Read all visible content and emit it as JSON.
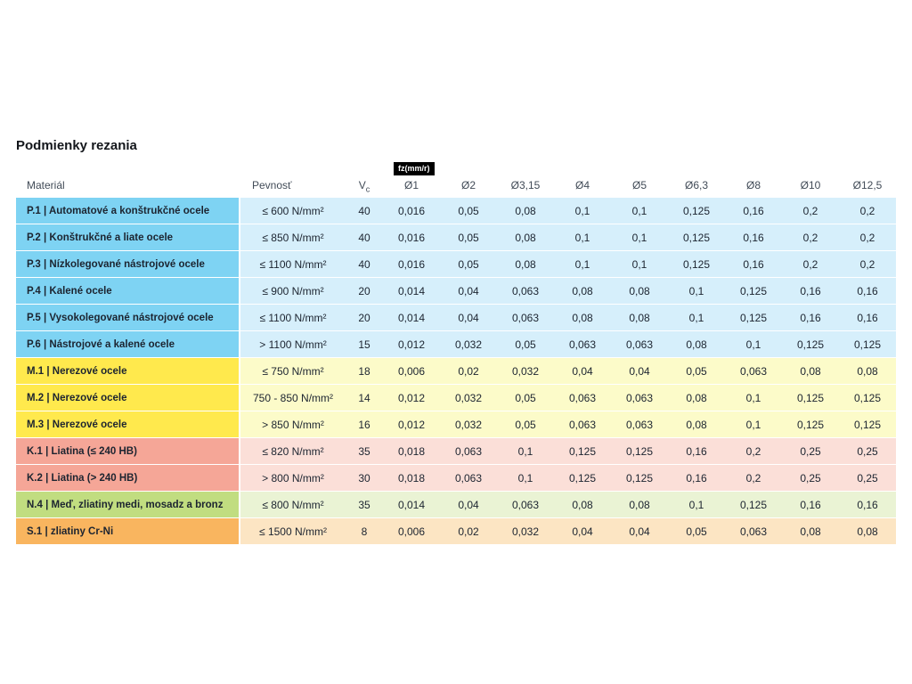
{
  "page": {
    "title": "Podmienky rezania"
  },
  "table": {
    "fz_badge": "fz(mm/r)",
    "columns": [
      {
        "key": "material",
        "label": "Materiál"
      },
      {
        "key": "pevnost",
        "label": "Pevnosť"
      },
      {
        "key": "vc",
        "label": "V",
        "sub": "c"
      },
      {
        "key": "d1",
        "label": "Ø1",
        "badge": "fz(mm/r)"
      },
      {
        "key": "d2",
        "label": "Ø2"
      },
      {
        "key": "d315",
        "label": "Ø3,15"
      },
      {
        "key": "d4",
        "label": "Ø4"
      },
      {
        "key": "d5",
        "label": "Ø5"
      },
      {
        "key": "d63",
        "label": "Ø6,3"
      },
      {
        "key": "d8",
        "label": "Ø8"
      },
      {
        "key": "d10",
        "label": "Ø10"
      },
      {
        "key": "d125",
        "label": "Ø12,5"
      }
    ],
    "palette": {
      "blue": {
        "label": "#7ed3f3",
        "body": "#d6effb"
      },
      "yellow": {
        "label": "#ffe94d",
        "body": "#fcfbc9"
      },
      "red": {
        "label": "#f5a697",
        "body": "#fbdfd8"
      },
      "green": {
        "label": "#c1dd80",
        "body": "#eaf3d4"
      },
      "orange": {
        "label": "#f9b55f",
        "body": "#fce5c3"
      }
    },
    "rows": [
      {
        "group": "blue",
        "material": "P.1 | Automatové a konštrukčné ocele",
        "pevnost": "≤ 600 N/mm²",
        "vc": "40",
        "values": [
          "0,016",
          "0,05",
          "0,08",
          "0,1",
          "0,1",
          "0,125",
          "0,16",
          "0,2",
          "0,2"
        ]
      },
      {
        "group": "blue",
        "material": "P.2 | Konštrukčné a liate ocele",
        "pevnost": "≤ 850 N/mm²",
        "vc": "40",
        "values": [
          "0,016",
          "0,05",
          "0,08",
          "0,1",
          "0,1",
          "0,125",
          "0,16",
          "0,2",
          "0,2"
        ]
      },
      {
        "group": "blue",
        "material": "P.3 | Nízkolegované nástrojové ocele",
        "pevnost": "≤ 1100 N/mm²",
        "vc": "40",
        "values": [
          "0,016",
          "0,05",
          "0,08",
          "0,1",
          "0,1",
          "0,125",
          "0,16",
          "0,2",
          "0,2"
        ]
      },
      {
        "group": "blue",
        "material": "P.4 | Kalené ocele",
        "pevnost": "≤ 900 N/mm²",
        "vc": "20",
        "values": [
          "0,014",
          "0,04",
          "0,063",
          "0,08",
          "0,08",
          "0,1",
          "0,125",
          "0,16",
          "0,16"
        ]
      },
      {
        "group": "blue",
        "material": "P.5 | Vysokolegované nástrojové ocele",
        "pevnost": "≤ 1100 N/mm²",
        "vc": "20",
        "values": [
          "0,014",
          "0,04",
          "0,063",
          "0,08",
          "0,08",
          "0,1",
          "0,125",
          "0,16",
          "0,16"
        ]
      },
      {
        "group": "blue",
        "material": "P.6 | Nástrojové a kalené ocele",
        "pevnost": "> 1100 N/mm²",
        "vc": "15",
        "values": [
          "0,012",
          "0,032",
          "0,05",
          "0,063",
          "0,063",
          "0,08",
          "0,1",
          "0,125",
          "0,125"
        ]
      },
      {
        "group": "yellow",
        "material": "M.1 | Nerezové ocele",
        "pevnost": "≤ 750 N/mm²",
        "vc": "18",
        "values": [
          "0,006",
          "0,02",
          "0,032",
          "0,04",
          "0,04",
          "0,05",
          "0,063",
          "0,08",
          "0,08"
        ]
      },
      {
        "group": "yellow",
        "material": "M.2 | Nerezové ocele",
        "pevnost": "750 - 850 N/mm²",
        "vc": "14",
        "values": [
          "0,012",
          "0,032",
          "0,05",
          "0,063",
          "0,063",
          "0,08",
          "0,1",
          "0,125",
          "0,125"
        ]
      },
      {
        "group": "yellow",
        "material": "M.3 | Nerezové ocele",
        "pevnost": "> 850 N/mm²",
        "vc": "16",
        "values": [
          "0,012",
          "0,032",
          "0,05",
          "0,063",
          "0,063",
          "0,08",
          "0,1",
          "0,125",
          "0,125"
        ]
      },
      {
        "group": "red",
        "material": "K.1 | Liatina (≤ 240 HB)",
        "pevnost": "≤ 820 N/mm²",
        "vc": "35",
        "values": [
          "0,018",
          "0,063",
          "0,1",
          "0,125",
          "0,125",
          "0,16",
          "0,2",
          "0,25",
          "0,25"
        ]
      },
      {
        "group": "red",
        "material": "K.2 | Liatina (> 240 HB)",
        "pevnost": "> 800 N/mm²",
        "vc": "30",
        "values": [
          "0,018",
          "0,063",
          "0,1",
          "0,125",
          "0,125",
          "0,16",
          "0,2",
          "0,25",
          "0,25"
        ]
      },
      {
        "group": "green",
        "material": "N.4 | Meď, zliatiny medi, mosadz a bronz",
        "pevnost": "≤ 800 N/mm²",
        "vc": "35",
        "values": [
          "0,014",
          "0,04",
          "0,063",
          "0,08",
          "0,08",
          "0,1",
          "0,125",
          "0,16",
          "0,16"
        ]
      },
      {
        "group": "orange",
        "material": "S.1 | zliatiny Cr-Ni",
        "pevnost": "≤ 1500 N/mm²",
        "vc": "8",
        "values": [
          "0,006",
          "0,02",
          "0,032",
          "0,04",
          "0,04",
          "0,05",
          "0,063",
          "0,08",
          "0,08"
        ]
      }
    ]
  }
}
